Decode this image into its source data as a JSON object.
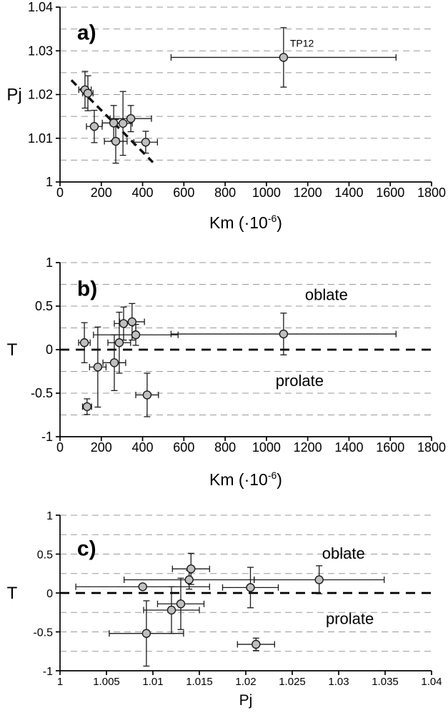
{
  "chart_data": [
    {
      "type": "scatter",
      "panel": "a",
      "ylabel": "Pj",
      "xlabel": {
        "pre": "Km (·10",
        "sup": "-6",
        "post": ")"
      },
      "xlim": [
        0,
        1800
      ],
      "ylim": [
        1,
        1.04
      ],
      "xticks": [
        0,
        200,
        400,
        600,
        800,
        1000,
        1200,
        1400,
        1600,
        1800
      ],
      "xtick_labels": [
        "0",
        "200",
        "400",
        "600",
        "800",
        "1000",
        "1200",
        "1400",
        "1600",
        "1800"
      ],
      "yticks": [
        1,
        1.01,
        1.02,
        1.03,
        1.04
      ],
      "ytick_labels": [
        "1",
        "1.01",
        "1.02",
        "1.03",
        "1.04"
      ],
      "gridlines_y": [
        1.005,
        1.01,
        1.015,
        1.02,
        1.025,
        1.03,
        1.035,
        1.04
      ],
      "zero_line_y": null,
      "trend_line": {
        "x1": 55,
        "y1": 1.0233,
        "x2": 450,
        "y2": 1.0045
      },
      "grid": true,
      "legend": "none",
      "points": [
        {
          "x": 121,
          "y": 1.0211,
          "xerr": 30,
          "yerr": 0.0042
        },
        {
          "x": 135,
          "y": 1.0203,
          "xerr": 25,
          "yerr": 0.004
        },
        {
          "x": 166,
          "y": 1.0127,
          "xerr": 38,
          "yerr": 0.0037
        },
        {
          "x": 260,
          "y": 1.0135,
          "xerr": 55,
          "yerr": 0.004
        },
        {
          "x": 270,
          "y": 1.0093,
          "xerr": 55,
          "yerr": 0.005
        },
        {
          "x": 305,
          "y": 1.0134,
          "xerr": 45,
          "yerr": 0.0073
        },
        {
          "x": 343,
          "y": 1.0145,
          "xerr": 100,
          "yerr": 0.003
        },
        {
          "x": 415,
          "y": 1.0091,
          "xerr": 57,
          "yerr": 0.0025
        },
        {
          "x": 1083,
          "y": 1.0285,
          "xerr": 545,
          "yerr": 0.0068,
          "label": "TP12"
        }
      ],
      "annotations": [
        {
          "text": "a)",
          "fx": 0.046,
          "fy": 0.185,
          "size": 30,
          "weight": "bold",
          "anchor": "start"
        }
      ]
    },
    {
      "type": "scatter",
      "panel": "b",
      "ylabel": "T",
      "xlabel": {
        "pre": "Km (·10",
        "sup": "-6",
        "post": ")"
      },
      "xlim": [
        0,
        1800
      ],
      "ylim": [
        -1,
        1
      ],
      "xticks": [
        0,
        200,
        400,
        600,
        800,
        1000,
        1200,
        1400,
        1600,
        1800
      ],
      "xtick_labels": [
        "0",
        "200",
        "400",
        "600",
        "800",
        "1000",
        "1200",
        "1400",
        "1600",
        "1800"
      ],
      "yticks": [
        -1,
        -0.5,
        0,
        0.5,
        1
      ],
      "ytick_labels": [
        "-1",
        "-0.5",
        "0",
        "0.5",
        "1"
      ],
      "gridlines_y": [
        -0.75,
        -0.5,
        -0.25,
        0.25,
        0.5,
        0.75,
        1
      ],
      "zero_line_y": 0,
      "trend_line": null,
      "grid": true,
      "legend": "none",
      "points": [
        {
          "x": 118,
          "y": 0.08,
          "xerr": 28,
          "yerr": 0.23
        },
        {
          "x": 131,
          "y": -0.655,
          "xerr": 22,
          "yerr": 0.09
        },
        {
          "x": 183,
          "y": -0.2,
          "xerr": 40,
          "yerr": 0.46
        },
        {
          "x": 263,
          "y": -0.15,
          "xerr": 55,
          "yerr": 0.32
        },
        {
          "x": 287,
          "y": 0.08,
          "xerr": 55,
          "yerr": 0.35
        },
        {
          "x": 308,
          "y": 0.3,
          "xerr": 45,
          "yerr": 0.19
        },
        {
          "x": 349,
          "y": 0.32,
          "xerr": 60,
          "yerr": 0.21
        },
        {
          "x": 367,
          "y": 0.17,
          "xerr": 205,
          "yerr": 0.12
        },
        {
          "x": 422,
          "y": -0.52,
          "xerr": 55,
          "yerr": 0.25
        },
        {
          "x": 1083,
          "y": 0.18,
          "xerr": 545,
          "yerr": 0.24
        }
      ],
      "annotations": [
        {
          "text": "b)",
          "fx": 0.046,
          "fy": 0.19,
          "size": 30,
          "weight": "bold",
          "anchor": "start"
        },
        {
          "text": "oblate",
          "fx": 0.717,
          "fy": 0.215,
          "size": 22,
          "weight": "normal",
          "anchor": "middle"
        },
        {
          "text": "prolate",
          "fx": 0.645,
          "fy": 0.71,
          "size": 22,
          "weight": "normal",
          "anchor": "middle"
        }
      ]
    },
    {
      "type": "scatter",
      "panel": "c",
      "ylabel": "T",
      "xlabel": {
        "pre": "Pj"
      },
      "xlim": [
        1,
        1.04
      ],
      "ylim": [
        -1,
        1
      ],
      "xticks": [
        1,
        1.005,
        1.01,
        1.015,
        1.02,
        1.025,
        1.03,
        1.035,
        1.04
      ],
      "xtick_labels": [
        "1",
        "1.005",
        "1.01",
        "1.015",
        "1.02",
        "1.025",
        "1.03",
        "1.035",
        "1.04"
      ],
      "yticks": [
        -1,
        -0.5,
        0,
        0.5,
        1
      ],
      "ytick_labels": [
        "-1",
        "-0.5",
        "0",
        "0.5",
        "1"
      ],
      "gridlines_y": [
        -0.75,
        -0.5,
        -0.25,
        0.25,
        0.5,
        0.75,
        1
      ],
      "zero_line_y": 0,
      "trend_line": null,
      "grid": true,
      "legend": "none",
      "points": [
        {
          "x": 1.0089,
          "y": 0.08,
          "xerr": 0.0072,
          "yerr": 0
        },
        {
          "x": 1.0093,
          "y": -0.52,
          "xerr": 0.004,
          "yerr": 0.42
        },
        {
          "x": 1.012,
          "y": -0.22,
          "xerr": 0.003,
          "yerr": 0.3
        },
        {
          "x": 1.013,
          "y": -0.14,
          "xerr": 0.0025,
          "yerr": 0.33
        },
        {
          "x": 1.0141,
          "y": 0.31,
          "xerr": 0.002,
          "yerr": 0.2
        },
        {
          "x": 1.0139,
          "y": 0.17,
          "xerr": 0.007,
          "yerr": 0.12
        },
        {
          "x": 1.0205,
          "y": 0.07,
          "xerr": 0.003,
          "yerr": 0.26
        },
        {
          "x": 1.0211,
          "y": -0.66,
          "xerr": 0.002,
          "yerr": 0.08
        },
        {
          "x": 1.0279,
          "y": 0.17,
          "xerr": 0.007,
          "yerr": 0.18
        }
      ],
      "annotations": [
        {
          "text": "c)",
          "fx": 0.046,
          "fy": 0.26,
          "size": 30,
          "weight": "bold",
          "anchor": "start"
        },
        {
          "text": "oblate",
          "fx": 0.763,
          "fy": 0.28,
          "size": 22,
          "weight": "normal",
          "anchor": "middle"
        },
        {
          "text": "prolate",
          "fx": 0.78,
          "fy": 0.7,
          "size": 22,
          "weight": "normal",
          "anchor": "middle"
        }
      ]
    }
  ]
}
